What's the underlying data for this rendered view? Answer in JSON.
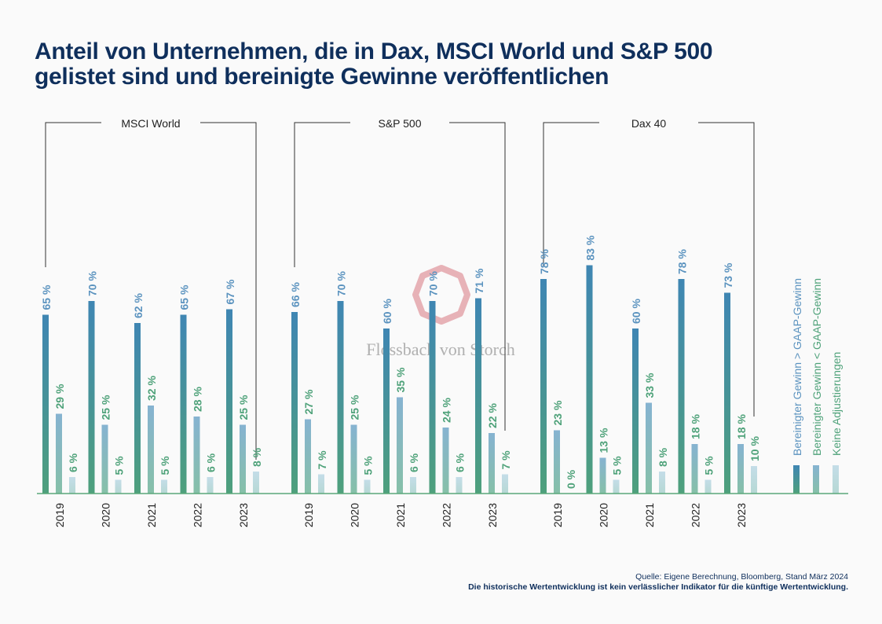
{
  "title": {
    "line1": "Anteil von Unternehmen, die in Dax, MSCI World und S&P 500",
    "line2": "gelistet sind und bereinigte Gewinne veröffentlichen"
  },
  "footer": {
    "source": "Quelle: Eigene Berechnung, Bloomberg, Stand März 2024",
    "disclaimer": "Die historische Wertentwicklung ist kein verlässlicher Indikator für die künftige Wertentwicklung."
  },
  "watermark": "Flossbach von Storch",
  "colors": {
    "gaap_above": "#4a8fb4",
    "gaap_below": "#8ab8d2",
    "no_adjust": "#b8d8e0",
    "value_above": "#5b93bf",
    "value_green": "#4fa27a",
    "baseline": "#5aa87a",
    "bracket": "#333333",
    "watermark_logo": "#e09aa0"
  },
  "chart_data": {
    "type": "bar",
    "ylim": [
      0,
      100
    ],
    "series": [
      {
        "name": "Bereinigter Gewinn > GAAP-Gewinn"
      },
      {
        "name": "Bereinigter Gewinn < GAAP-Gewinn"
      },
      {
        "name": "Keine Adjustierungen"
      }
    ],
    "groups": [
      {
        "name": "MSCI World",
        "years": [
          "2019",
          "2020",
          "2021",
          "2022",
          "2023"
        ],
        "values": [
          [
            65,
            29,
            6
          ],
          [
            70,
            25,
            5
          ],
          [
            62,
            32,
            5
          ],
          [
            65,
            28,
            6
          ],
          [
            67,
            25,
            8
          ]
        ]
      },
      {
        "name": "S&P 500",
        "years": [
          "2019",
          "2020",
          "2021",
          "2022",
          "2023"
        ],
        "values": [
          [
            66,
            27,
            7
          ],
          [
            70,
            25,
            5
          ],
          [
            60,
            35,
            6
          ],
          [
            70,
            24,
            6
          ],
          [
            71,
            22,
            7
          ]
        ]
      },
      {
        "name": "Dax 40",
        "years": [
          "2019",
          "2020",
          "2021",
          "2022",
          "2023"
        ],
        "values": [
          [
            78,
            23,
            0
          ],
          [
            83,
            13,
            5
          ],
          [
            60,
            33,
            8
          ],
          [
            78,
            18,
            5
          ],
          [
            73,
            18,
            10
          ]
        ]
      }
    ],
    "value_suffix": " %"
  }
}
